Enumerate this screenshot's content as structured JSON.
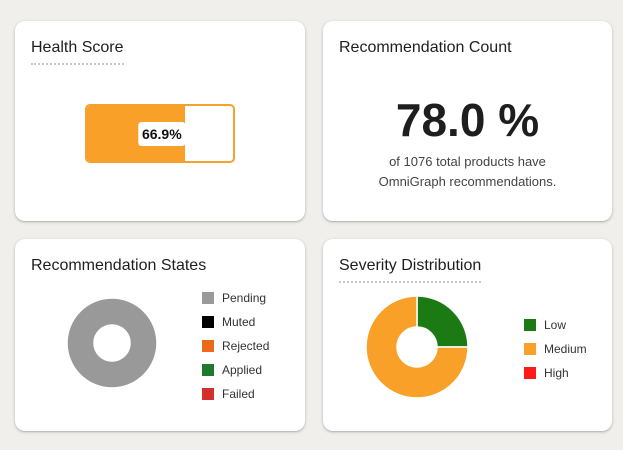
{
  "health": {
    "title": "Health Score",
    "value_label": "66.9%",
    "fraction": 0.669,
    "fill_color": "#f8a027"
  },
  "count": {
    "title": "Recommendation Count",
    "value": "78.0 %",
    "description_line1": "of 1076 total products have",
    "description_line2": "OmniGraph recommendations."
  },
  "states": {
    "title": "Recommendation States",
    "legend": [
      {
        "label": "Pending",
        "color": "#999999"
      },
      {
        "label": "Muted",
        "color": "#000000"
      },
      {
        "label": "Rejected",
        "color": "#ed6a1c"
      },
      {
        "label": "Applied",
        "color": "#1f7a2e"
      },
      {
        "label": "Failed",
        "color": "#d32f2f"
      }
    ],
    "slices": [
      1.0,
      0,
      0,
      0,
      0
    ]
  },
  "severity": {
    "title": "Severity Distribution",
    "legend": [
      {
        "label": "Low",
        "color": "#1b7a13"
      },
      {
        "label": "Medium",
        "color": "#f8a027"
      },
      {
        "label": "High",
        "color": "#ff1a1a"
      }
    ],
    "slices": [
      0.25,
      0.75,
      0
    ]
  }
}
